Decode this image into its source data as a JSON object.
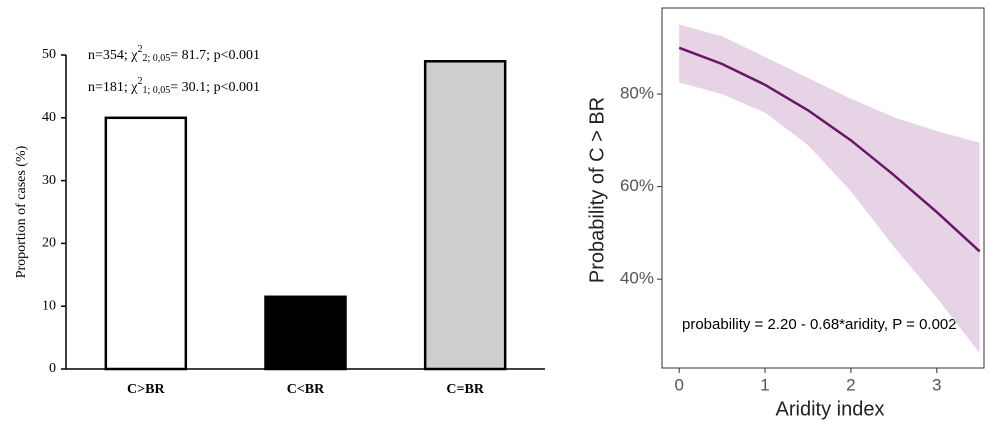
{
  "chart_data": [
    {
      "type": "bar",
      "annotations": [
        [
          "n=354; χ",
          "2",
          "2; 0,05",
          "= 81.7; p<0.001"
        ],
        [
          "n=181; χ",
          "2",
          "1; 0,05",
          "= 30.1; p<0.001"
        ]
      ],
      "y_label": "Proportion of  cases  (%)",
      "categories": [
        "C>BR",
        "C<BR",
        "C=BR"
      ],
      "values": [
        40,
        11.5,
        49
      ],
      "colors": [
        "#ffffff",
        "#000000",
        "#d0cdcd"
      ],
      "ylim": [
        0,
        50
      ],
      "yticks": [
        0,
        10,
        20,
        30,
        40,
        50
      ]
    },
    {
      "type": "line",
      "annotation": "probability = 2.20 - 0.68*aridity, P = 0.002",
      "x_label": "Aridity index",
      "y_label": "Probability of C > BR",
      "x": [
        0,
        0.5,
        1,
        1.5,
        2,
        2.5,
        3,
        3.5
      ],
      "values": [
        90,
        86.5,
        82,
        76.5,
        70,
        62.5,
        54.5,
        46
      ],
      "lower": [
        82.5,
        80,
        76,
        69,
        59,
        47,
        36,
        24
      ],
      "upper": [
        95,
        92.5,
        88,
        83.5,
        79,
        75,
        72,
        69.5
      ],
      "color": "#6b1566",
      "band_color": "#e6d3e6",
      "xlim": [
        -0.2,
        3.55
      ],
      "xticks": [
        0,
        1,
        2,
        3
      ],
      "ylim": [
        20.8,
        98.6
      ],
      "yticks": [
        {
          "value": 40,
          "label": "40%"
        },
        {
          "value": 60,
          "label": "60%"
        },
        {
          "value": 80,
          "label": "80%"
        }
      ]
    }
  ]
}
